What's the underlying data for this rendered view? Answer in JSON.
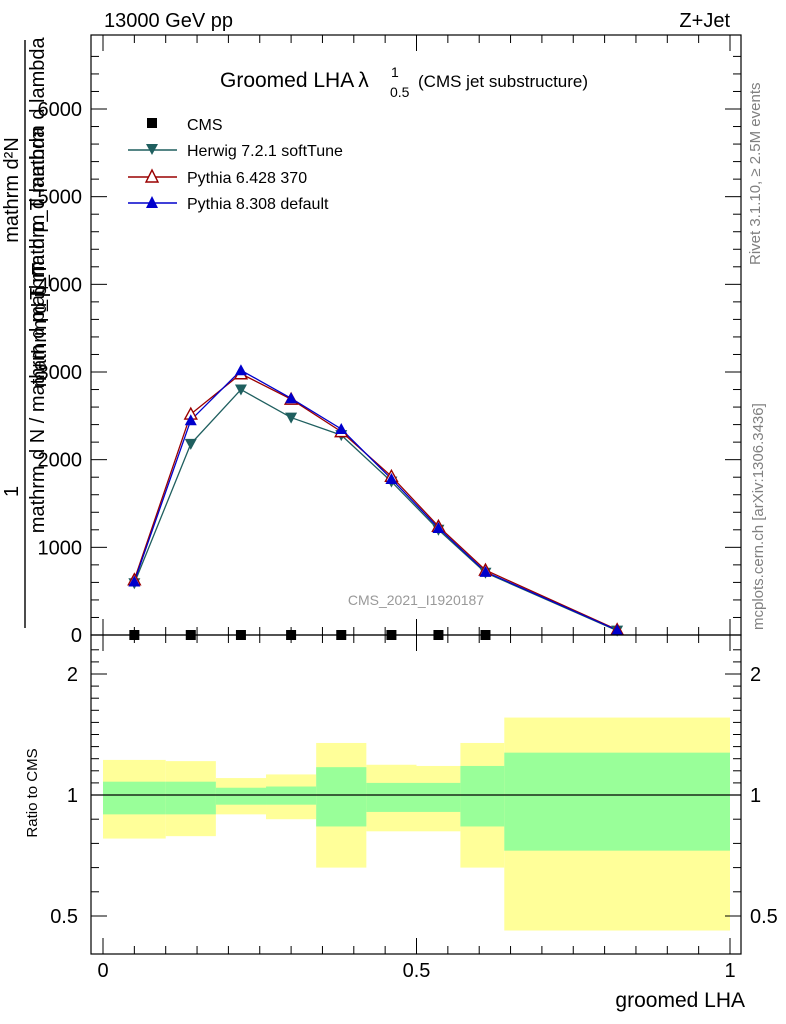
{
  "header": {
    "left": "13000 GeV pp",
    "right": "Z+Jet"
  },
  "side_labels": {
    "rivet": "Rivet 3.1.10, ≥ 2.5M events",
    "mcplots": "mcplots.cern.ch [arXiv:1306.3436]"
  },
  "watermark": "CMS_2021_I1920187",
  "chart_data": [
    {
      "type": "line",
      "title": "Groomed LHA",
      "title_symbol": "λ",
      "title_sup": "1",
      "title_sub": "0.5",
      "subtitle": "(CMS jet substructure)",
      "ylabel": {
        "prefix": "1",
        "numerator": "mathrm d²N",
        "denominator": "mathrm d N / mathrm d p_T mathrm d lambda",
        "overlap_a": "mathrm d p_T mathrm d lambda",
        "overlap_b": "mathrm d p_T"
      },
      "xlim": [
        0,
        1
      ],
      "ylim": [
        0,
        6800
      ],
      "yticks": [
        0,
        1000,
        2000,
        3000,
        4000,
        5000,
        6000
      ],
      "ytick_labels": [
        "0",
        "1000",
        "2000",
        "3000",
        "4000",
        "5000",
        "6000"
      ],
      "x": [
        0.05,
        0.14,
        0.22,
        0.3,
        0.38,
        0.46,
        0.535,
        0.61,
        0.82
      ],
      "series": [
        {
          "name": "CMS",
          "color": "#000000",
          "marker": "square",
          "values": [
            0,
            0,
            0,
            0,
            0,
            0,
            0,
            0,
            null
          ]
        },
        {
          "name": "Herwig 7.2.1 softTune",
          "color": "#1f5f5f",
          "marker": "triangle-down",
          "values": [
            590,
            2180,
            2800,
            2480,
            2280,
            1750,
            1200,
            710,
            50
          ]
        },
        {
          "name": "Pythia 6.428 370",
          "color": "#9a0000",
          "marker": "triangle-up-open",
          "values": [
            630,
            2520,
            2980,
            2690,
            2320,
            1810,
            1240,
            740,
            60
          ]
        },
        {
          "name": "Pythia 8.308 default",
          "color": "#0000cc",
          "marker": "triangle-up",
          "values": [
            610,
            2450,
            3020,
            2700,
            2350,
            1780,
            1220,
            720,
            55
          ]
        }
      ]
    },
    {
      "type": "area",
      "ylabel": "Ratio to CMS",
      "xlabel": "groomed LHA",
      "xlim": [
        0,
        1
      ],
      "ylim": [
        0.4,
        2.3
      ],
      "xticks": [
        0,
        0.5,
        1
      ],
      "xtick_labels": [
        "0",
        "0.5",
        "1"
      ],
      "yticks": [
        0.5,
        1,
        2
      ],
      "ytick_labels": [
        "0.5",
        "1",
        "2"
      ],
      "colors": {
        "outer": "#ffff99",
        "inner": "#99ff99"
      },
      "bins": [
        {
          "x0": 0.0,
          "x1": 0.1,
          "outer": [
            0.82,
            1.29
          ],
          "inner": [
            0.92,
            1.11
          ]
        },
        {
          "x0": 0.1,
          "x1": 0.18,
          "outer": [
            0.83,
            1.28
          ],
          "inner": [
            0.92,
            1.11
          ]
        },
        {
          "x0": 0.18,
          "x1": 0.26,
          "outer": [
            0.92,
            1.14
          ],
          "inner": [
            0.96,
            1.06
          ]
        },
        {
          "x0": 0.26,
          "x1": 0.34,
          "outer": [
            0.9,
            1.17
          ],
          "inner": [
            0.96,
            1.07
          ]
        },
        {
          "x0": 0.34,
          "x1": 0.42,
          "outer": [
            0.7,
            1.43
          ],
          "inner": [
            0.87,
            1.23
          ]
        },
        {
          "x0": 0.42,
          "x1": 0.5,
          "outer": [
            0.85,
            1.25
          ],
          "inner": [
            0.93,
            1.1
          ]
        },
        {
          "x0": 0.5,
          "x1": 0.57,
          "outer": [
            0.85,
            1.24
          ],
          "inner": [
            0.93,
            1.1
          ]
        },
        {
          "x0": 0.57,
          "x1": 0.64,
          "outer": [
            0.7,
            1.43
          ],
          "inner": [
            0.87,
            1.24
          ]
        },
        {
          "x0": 0.64,
          "x1": 1.0,
          "outer": [
            0.44,
            1.64
          ],
          "inner": [
            0.77,
            1.35
          ]
        }
      ]
    }
  ]
}
